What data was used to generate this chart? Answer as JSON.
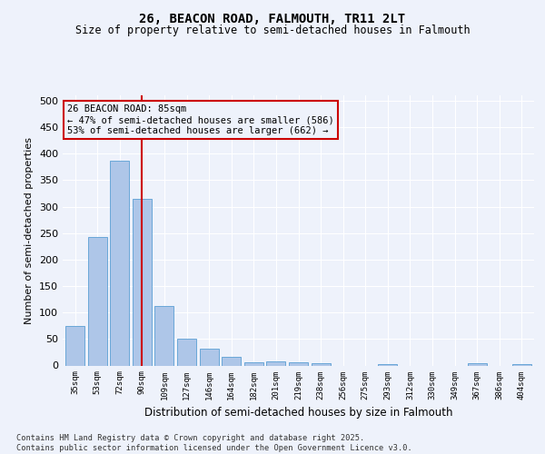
{
  "title1": "26, BEACON ROAD, FALMOUTH, TR11 2LT",
  "title2": "Size of property relative to semi-detached houses in Falmouth",
  "xlabel": "Distribution of semi-detached houses by size in Falmouth",
  "ylabel": "Number of semi-detached properties",
  "bar_labels": [
    "35sqm",
    "53sqm",
    "72sqm",
    "90sqm",
    "109sqm",
    "127sqm",
    "146sqm",
    "164sqm",
    "182sqm",
    "201sqm",
    "219sqm",
    "238sqm",
    "256sqm",
    "275sqm",
    "293sqm",
    "312sqm",
    "330sqm",
    "349sqm",
    "367sqm",
    "386sqm",
    "404sqm"
  ],
  "bar_values": [
    75,
    243,
    387,
    315,
    113,
    50,
    31,
    16,
    6,
    8,
    6,
    5,
    0,
    0,
    3,
    0,
    0,
    0,
    4,
    0,
    2
  ],
  "bar_color": "#aec6e8",
  "bar_edgecolor": "#5a9fd4",
  "vline_x": 3.5,
  "vline_color": "#cc0000",
  "annotation_text": "26 BEACON ROAD: 85sqm\n← 47% of semi-detached houses are smaller (586)\n53% of semi-detached houses are larger (662) →",
  "annotation_box_edgecolor": "#cc0000",
  "ylim": [
    0,
    510
  ],
  "yticks": [
    0,
    50,
    100,
    150,
    200,
    250,
    300,
    350,
    400,
    450,
    500
  ],
  "footer": "Contains HM Land Registry data © Crown copyright and database right 2025.\nContains public sector information licensed under the Open Government Licence v3.0.",
  "bg_color": "#eef2fb",
  "grid_color": "#ffffff"
}
